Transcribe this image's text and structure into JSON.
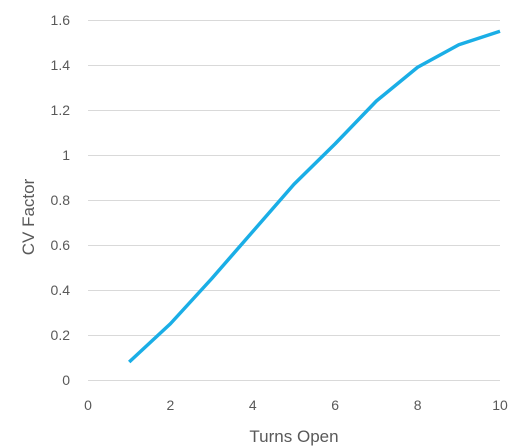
{
  "chart_data": {
    "type": "line",
    "title": "",
    "xlabel": "Turns Open",
    "ylabel": "CV Factor",
    "xlim": [
      0,
      10
    ],
    "ylim": [
      0,
      1.6
    ],
    "x_ticks": [
      0,
      2,
      4,
      6,
      8,
      10
    ],
    "y_ticks": [
      0,
      0.2,
      0.4,
      0.6,
      0.8,
      1,
      1.2,
      1.4,
      1.6
    ],
    "x_tick_labels": [
      "0",
      "2",
      "4",
      "6",
      "8",
      "10"
    ],
    "y_tick_labels": [
      "0",
      "0.2",
      "0.4",
      "0.6",
      "0.8",
      "1",
      "1.2",
      "1.4",
      "1.6"
    ],
    "grid": "horizontal",
    "legend": "none",
    "series": [
      {
        "color": "#1aaee6",
        "x": [
          1,
          2,
          3,
          4,
          5,
          6,
          7,
          8,
          9,
          10
        ],
        "y": [
          0.08,
          0.25,
          0.45,
          0.66,
          0.87,
          1.05,
          1.24,
          1.39,
          1.49,
          1.55
        ]
      }
    ]
  }
}
